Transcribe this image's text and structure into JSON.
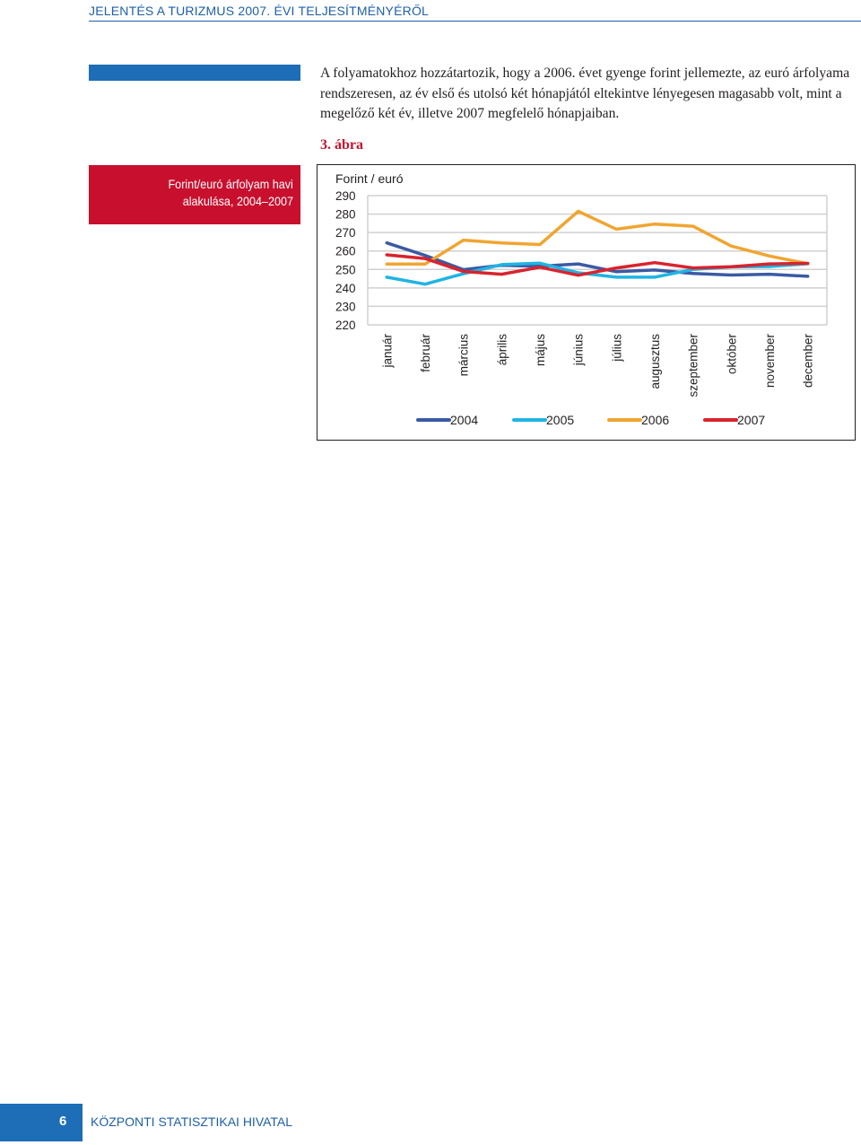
{
  "header": {
    "title": "JELENTÉS A TURIZMUS 2007. ÉVI TELJESÍTMÉNYÉRŐL"
  },
  "body": {
    "paragraph": "A folyamatokhoz hozzátartozik, hogy a 2006. évet gyenge forint jellemezte, az euró árfolyama rendszeresen, az év első és utolsó két hónapjától eltekintve lényegesen magasabb volt, mint a megelőző két év, illetve 2007 megfelelő hónapjaiban."
  },
  "figure": {
    "label": "3. ábra",
    "caption_line1": "Forint/euró árfolyam havi",
    "caption_line2": "alakulása, 2004–2007"
  },
  "chart_data": {
    "type": "line",
    "ylabel": "Forint / euró",
    "ylim": [
      220,
      290
    ],
    "yticks": [
      290,
      280,
      270,
      260,
      250,
      240,
      230,
      220
    ],
    "grid": true,
    "legend_position": "bottom",
    "categories": [
      "január",
      "február",
      "március",
      "április",
      "május",
      "június",
      "július",
      "augusztus",
      "szeptember",
      "október",
      "november",
      "december"
    ],
    "series": [
      {
        "name": "2004",
        "color": "#3b5aa3",
        "values": [
          264.4,
          257.6,
          249.9,
          252.3,
          251.7,
          253.0,
          248.8,
          249.7,
          247.8,
          247.0,
          247.4,
          246.3
        ]
      },
      {
        "name": "2005",
        "color": "#1fb4e3",
        "values": [
          245.8,
          242.0,
          247.7,
          252.6,
          253.4,
          248.2,
          245.8,
          245.8,
          250.0,
          251.4,
          251.6,
          253.1
        ]
      },
      {
        "name": "2006",
        "color": "#f0a530",
        "values": [
          252.9,
          252.9,
          265.9,
          264.4,
          263.5,
          281.5,
          271.8,
          274.6,
          273.4,
          262.7,
          257.3,
          253.1
        ]
      },
      {
        "name": "2007",
        "color": "#d9232d",
        "values": [
          257.9,
          255.9,
          248.9,
          247.4,
          251.2,
          246.9,
          250.8,
          253.7,
          250.8,
          251.5,
          253.0,
          253.3
        ]
      }
    ]
  },
  "footer": {
    "page_number": "6",
    "publisher": "KÖZPONTI STATISZTIKAI HIVATAL"
  }
}
